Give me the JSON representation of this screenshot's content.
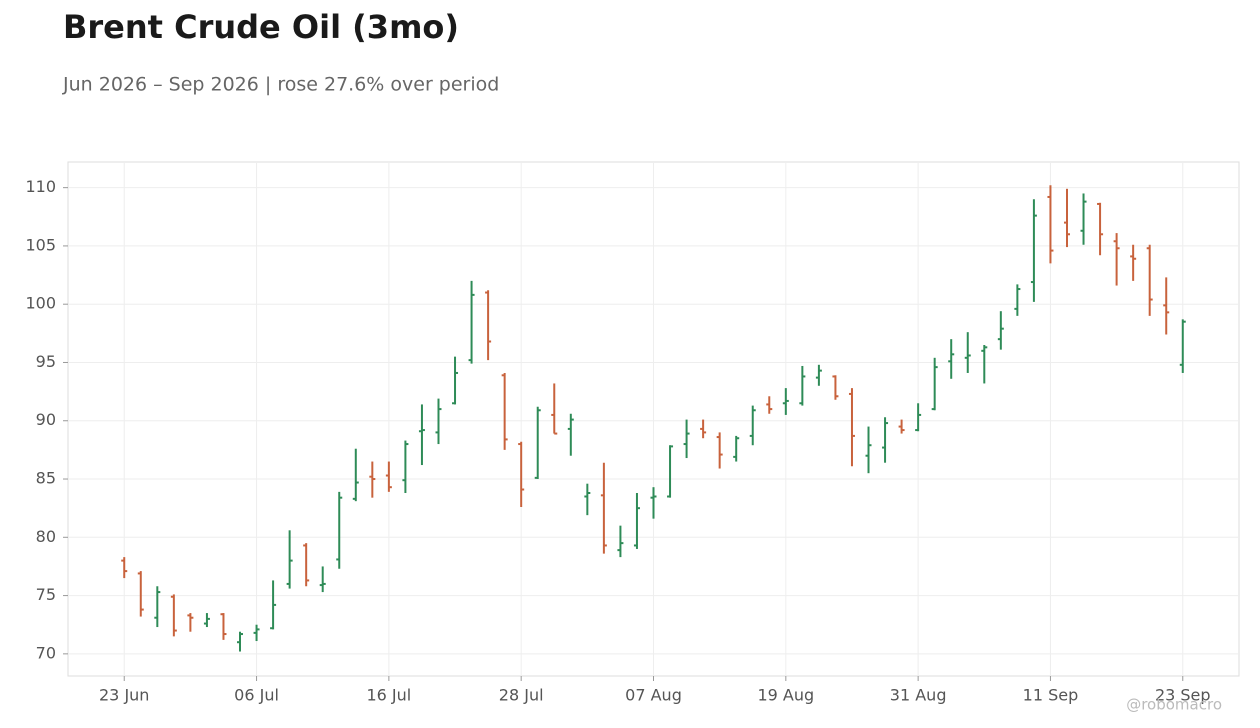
{
  "chart_data": {
    "type": "ohlc",
    "title": "Brent Crude Oil (3mo)",
    "subtitle": "Jun 2026 – Sep 2026 | rose 27.6% over period",
    "watermark": "@robomacro",
    "categories": [
      "23 Jun",
      null,
      null,
      null,
      null,
      null,
      null,
      null,
      "06 Jul",
      null,
      null,
      null,
      null,
      null,
      null,
      null,
      "16 Jul",
      null,
      null,
      null,
      null,
      null,
      null,
      null,
      "28 Jul",
      null,
      null,
      null,
      null,
      null,
      null,
      null,
      "07 Aug",
      null,
      null,
      null,
      null,
      null,
      null,
      null,
      "19 Aug",
      null,
      null,
      null,
      null,
      null,
      null,
      null,
      "31 Aug",
      null,
      null,
      null,
      null,
      null,
      null,
      null,
      "11 Sep",
      null,
      null,
      null,
      null,
      null,
      null,
      null,
      "23 Sep"
    ],
    "open": [
      78.0,
      76.9,
      73.1,
      74.9,
      73.3,
      72.6,
      73.4,
      71.0,
      71.8,
      72.2,
      76.0,
      79.3,
      75.9,
      78.1,
      83.3,
      85.2,
      85.3,
      84.9,
      89.1,
      89.0,
      91.5,
      95.2,
      101.0,
      93.9,
      88.0,
      85.1,
      90.5,
      89.3,
      83.5,
      83.6,
      78.9,
      79.3,
      83.4,
      83.5,
      88.0,
      89.3,
      88.6,
      86.9,
      88.7,
      91.4,
      91.5,
      91.5,
      93.7,
      93.8,
      92.3,
      87.0,
      87.7,
      89.5,
      89.2,
      91.0,
      95.1,
      95.4,
      96.0,
      97.0,
      99.6,
      101.9,
      109.2,
      107.0,
      106.3,
      108.6,
      105.4,
      104.1,
      104.8,
      99.9,
      94.8
    ],
    "high": [
      78.3,
      77.1,
      75.8,
      75.1,
      73.5,
      73.5,
      73.5,
      71.9,
      72.5,
      76.3,
      80.6,
      79.5,
      77.5,
      83.9,
      87.6,
      86.5,
      86.5,
      88.3,
      91.4,
      91.9,
      95.5,
      102.0,
      101.2,
      94.1,
      88.2,
      91.2,
      93.2,
      90.6,
      84.6,
      86.4,
      81.0,
      83.8,
      84.3,
      87.9,
      90.1,
      90.1,
      89.0,
      88.7,
      91.3,
      92.1,
      92.8,
      94.7,
      94.8,
      93.9,
      92.8,
      89.5,
      90.3,
      90.1,
      91.5,
      95.4,
      97.0,
      97.6,
      96.5,
      99.4,
      101.7,
      109.0,
      110.2,
      109.9,
      109.5,
      108.7,
      106.1,
      105.1,
      105.1,
      102.3,
      98.7
    ],
    "low": [
      76.5,
      73.2,
      72.3,
      71.5,
      71.9,
      72.3,
      71.2,
      70.2,
      71.1,
      72.1,
      75.6,
      75.8,
      75.3,
      77.3,
      83.1,
      83.4,
      83.9,
      83.8,
      86.2,
      88.0,
      91.4,
      94.9,
      95.2,
      87.5,
      82.6,
      85.0,
      88.9,
      87.0,
      81.9,
      78.6,
      78.3,
      79.0,
      81.6,
      83.4,
      86.8,
      88.5,
      85.9,
      86.5,
      87.9,
      90.6,
      90.5,
      91.3,
      93.0,
      91.8,
      86.1,
      85.5,
      86.4,
      88.9,
      89.1,
      90.9,
      93.6,
      94.1,
      93.2,
      96.1,
      99.0,
      100.2,
      103.5,
      104.9,
      105.1,
      104.2,
      101.6,
      102.0,
      99.0,
      97.4,
      94.1
    ],
    "close": [
      77.1,
      73.8,
      75.3,
      72.0,
      73.1,
      73.0,
      71.7,
      71.7,
      72.1,
      74.2,
      78.0,
      76.3,
      76.0,
      83.4,
      84.7,
      85.0,
      84.3,
      88.0,
      89.2,
      91.0,
      94.1,
      100.8,
      96.8,
      88.4,
      84.1,
      90.9,
      88.9,
      90.1,
      83.8,
      79.3,
      79.5,
      82.5,
      83.5,
      87.8,
      88.9,
      89.0,
      87.1,
      88.5,
      90.9,
      91.0,
      91.7,
      93.8,
      94.3,
      92.1,
      88.7,
      87.9,
      89.8,
      89.2,
      90.5,
      94.6,
      95.7,
      95.6,
      96.3,
      97.9,
      101.3,
      107.6,
      104.6,
      106.0,
      108.8,
      106.0,
      104.8,
      103.9,
      100.4,
      99.3,
      98.5
    ],
    "up_color": "#2e8b57",
    "down_color": "#c8623c",
    "ylim": [
      68.1,
      112.2
    ],
    "yticks": [
      70,
      75,
      80,
      85,
      90,
      95,
      100,
      105,
      110
    ],
    "grid": true
  }
}
